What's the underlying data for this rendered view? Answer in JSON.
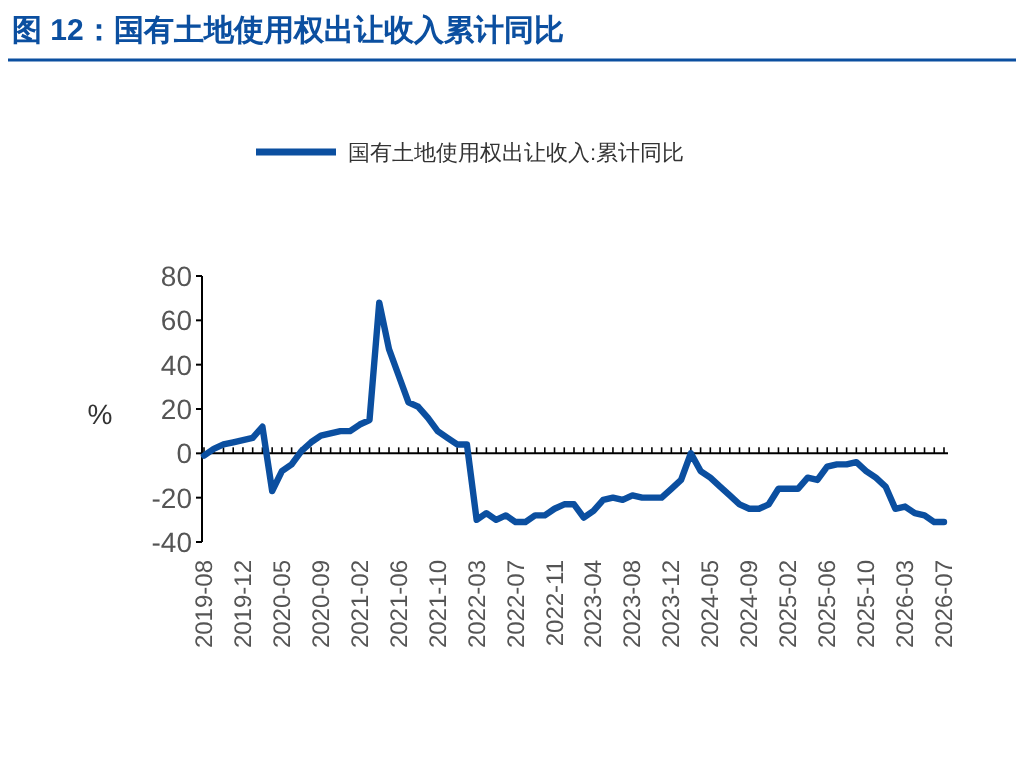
{
  "chart_data": {
    "type": "line",
    "title": "图 12：国有土地使用权出让收入累计同比",
    "ylabel": "%",
    "categories": [
      "2019-08",
      null,
      null,
      null,
      "2019-12",
      null,
      null,
      null,
      "2020-05",
      null,
      null,
      null,
      "2020-09",
      null,
      null,
      null,
      "2021-02",
      null,
      null,
      null,
      "2021-06",
      null,
      null,
      null,
      "2021-10",
      null,
      null,
      null,
      "2022-03",
      null,
      null,
      null,
      "2022-07",
      null,
      null,
      null,
      "2022-11",
      null,
      null,
      null,
      "2023-04",
      null,
      null,
      null,
      "2023-08",
      null,
      null,
      null,
      "2023-12",
      null,
      null,
      null,
      "2024-05",
      null,
      null,
      null,
      "2024-09",
      null,
      null,
      null,
      "2025-02",
      null,
      null,
      null,
      "2025-06",
      null,
      null,
      null,
      "2025-10",
      null,
      null,
      null,
      "2026-03",
      null,
      null,
      null,
      "2026-07"
    ],
    "series": [
      {
        "name": "国有土地使用权出让收入:累计同比",
        "color": "#0b4fa0",
        "values": [
          -1,
          2,
          4,
          5,
          6,
          7,
          12,
          -17,
          -8,
          -5,
          1,
          5,
          8,
          9,
          10,
          10,
          13,
          15,
          68,
          47,
          35,
          23,
          21,
          16,
          10,
          7,
          4,
          4,
          -30,
          -27,
          -30,
          -28,
          -31,
          -31,
          -28,
          -28,
          -25,
          -23,
          -23,
          -29,
          -26,
          -21,
          -20,
          -21,
          -19,
          -20,
          -20,
          -20,
          -16,
          -12,
          0,
          -8,
          -11,
          -15,
          -19,
          -23,
          -25,
          -25,
          -23,
          -16,
          -16,
          -16,
          -11,
          -12,
          -6,
          -5,
          -5,
          -4,
          -8,
          -11,
          -15,
          -25,
          -24,
          -27,
          -28,
          -31,
          -31
        ]
      }
    ],
    "ylim": [
      -40,
      80
    ],
    "yticks": [
      -40,
      -20,
      0,
      20,
      40,
      60,
      80
    ],
    "legend": "top",
    "marker": "none",
    "line_style": "solid"
  }
}
